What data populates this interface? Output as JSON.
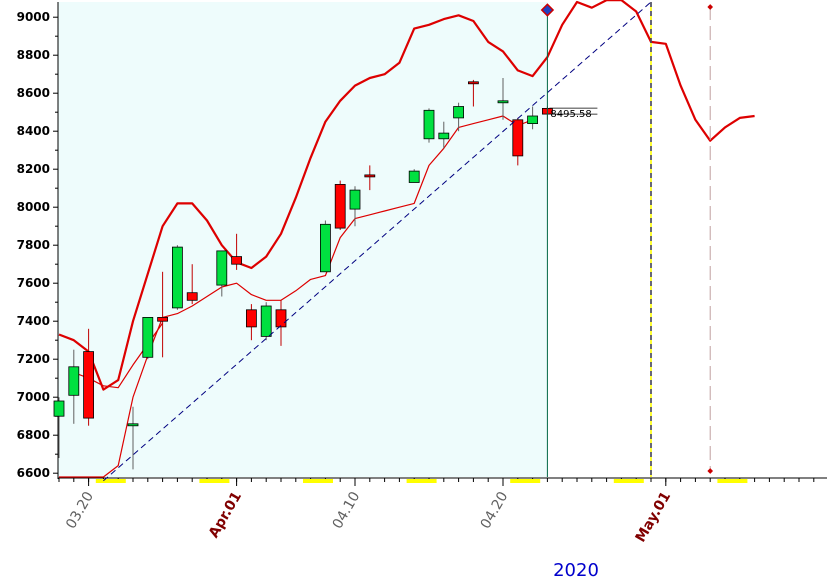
{
  "chart_data": {
    "type": "candlestick",
    "year_label": "2020",
    "ylim": [
      6580,
      9080
    ],
    "y_ticks": [
      6600,
      6800,
      7000,
      7200,
      7400,
      7600,
      7800,
      8000,
      8200,
      8400,
      8600,
      8800,
      9000
    ],
    "y_tick_labels": [
      "6600",
      "6800",
      "7000",
      "7200",
      "7400",
      "7600",
      "7800",
      "8000",
      "8200",
      "8400",
      "8600",
      "8800",
      "9000"
    ],
    "x_ticks": [
      {
        "label": "03.20",
        "index": 2,
        "color": "#606060",
        "bold": false
      },
      {
        "label": "Apr.01",
        "index": 12,
        "color": "#800000",
        "bold": true
      },
      {
        "label": "04.10",
        "index": 20,
        "color": "#606060",
        "bold": false
      },
      {
        "label": "04.20",
        "index": 30,
        "color": "#606060",
        "bold": false
      },
      {
        "label": "May.01",
        "index": 41,
        "color": "#800000",
        "bold": true
      }
    ],
    "colors": {
      "up": "#00e040",
      "down": "#ff0000",
      "band": "#dd0000",
      "background_history": "#eefcfc",
      "trendline": "#000080",
      "cursor": "#006644",
      "weekend_marker": "#ffff00",
      "year_label": "#0000cc"
    },
    "candles": [
      {
        "i": 0,
        "open": 6900,
        "high": 7000,
        "low": 6680,
        "close": 6980
      },
      {
        "i": 1,
        "open": 7010,
        "high": 7250,
        "low": 6860,
        "close": 7160
      },
      {
        "i": 2,
        "open": 7240,
        "high": 7360,
        "low": 6850,
        "close": 6890
      },
      {
        "i": 5,
        "open": 6860,
        "high": 6950,
        "low": 6620,
        "close": 6860
      },
      {
        "i": 6,
        "open": 7210,
        "high": 7420,
        "low": 7200,
        "close": 7420
      },
      {
        "i": 7,
        "open": 7420,
        "high": 7660,
        "low": 7210,
        "close": 7400
      },
      {
        "i": 8,
        "open": 7470,
        "high": 7800,
        "low": 7460,
        "close": 7790
      },
      {
        "i": 9,
        "open": 7550,
        "high": 7700,
        "low": 7490,
        "close": 7510
      },
      {
        "i": 11,
        "open": 7590,
        "high": 7770,
        "low": 7530,
        "close": 7770
      },
      {
        "i": 12,
        "open": 7740,
        "high": 7860,
        "low": 7670,
        "close": 7700
      },
      {
        "i": 13,
        "open": 7460,
        "high": 7490,
        "low": 7300,
        "close": 7370
      },
      {
        "i": 14,
        "open": 7320,
        "high": 7500,
        "low": 7300,
        "close": 7480
      },
      {
        "i": 15,
        "open": 7460,
        "high": 7510,
        "low": 7270,
        "close": 7370
      },
      {
        "i": 18,
        "open": 7660,
        "high": 7930,
        "low": 7660,
        "close": 7910
      },
      {
        "i": 19,
        "open": 8120,
        "high": 8140,
        "low": 7880,
        "close": 7890
      },
      {
        "i": 20,
        "open": 7990,
        "high": 8110,
        "low": 7900,
        "close": 8090
      },
      {
        "i": 21,
        "open": 8170,
        "high": 8220,
        "low": 8090,
        "close": 8160
      },
      {
        "i": 24,
        "open": 8130,
        "high": 8200,
        "low": 8130,
        "close": 8190
      },
      {
        "i": 25,
        "open": 8360,
        "high": 8520,
        "low": 8340,
        "close": 8510
      },
      {
        "i": 26,
        "open": 8360,
        "high": 8450,
        "low": 8310,
        "close": 8390
      },
      {
        "i": 27,
        "open": 8470,
        "high": 8550,
        "low": 8400,
        "close": 8530
      },
      {
        "i": 28,
        "open": 8660,
        "high": 8670,
        "low": 8530,
        "close": 8650
      },
      {
        "i": 30,
        "open": 8560,
        "high": 8680,
        "low": 8460,
        "close": 8560
      },
      {
        "i": 31,
        "open": 8460,
        "high": 8470,
        "low": 8220,
        "close": 8270
      },
      {
        "i": 32,
        "open": 8440,
        "high": 8530,
        "low": 8410,
        "close": 8480
      },
      {
        "i": 33,
        "open": 8520,
        "high": 8530,
        "low": 8460,
        "close": 8490
      }
    ],
    "upper_band": [
      [
        0,
        7330
      ],
      [
        1,
        7300
      ],
      [
        2,
        7240
      ],
      [
        3,
        7040
      ],
      [
        4,
        7090
      ],
      [
        5,
        7400
      ],
      [
        6,
        7650
      ],
      [
        7,
        7900
      ],
      [
        8,
        8020
      ],
      [
        9,
        8020
      ],
      [
        10,
        7930
      ],
      [
        11,
        7800
      ],
      [
        12,
        7710
      ],
      [
        13,
        7680
      ],
      [
        14,
        7740
      ],
      [
        15,
        7860
      ],
      [
        16,
        8050
      ],
      [
        17,
        8260
      ],
      [
        18,
        8450
      ],
      [
        19,
        8560
      ],
      [
        20,
        8640
      ],
      [
        21,
        8680
      ],
      [
        22,
        8700
      ],
      [
        23,
        8760
      ],
      [
        24,
        8940
      ],
      [
        25,
        8960
      ],
      [
        26,
        8990
      ],
      [
        27,
        9010
      ],
      [
        28,
        8980
      ],
      [
        29,
        8870
      ],
      [
        30,
        8820
      ],
      [
        31,
        8720
      ],
      [
        32,
        8690
      ],
      [
        33,
        8790
      ],
      [
        34,
        8960
      ],
      [
        35,
        9080
      ],
      [
        36,
        9050
      ],
      [
        37,
        9090
      ],
      [
        38,
        9090
      ],
      [
        39,
        9030
      ],
      [
        40,
        8870
      ],
      [
        41,
        8860
      ],
      [
        42,
        8640
      ],
      [
        43,
        8460
      ],
      [
        44,
        8350
      ],
      [
        45,
        8420
      ],
      [
        46,
        8470
      ],
      [
        47,
        8480
      ]
    ],
    "lower_band": [
      [
        0,
        6580
      ],
      [
        1,
        6580
      ],
      [
        2,
        6580
      ],
      [
        3,
        6580
      ],
      [
        4,
        6640
      ],
      [
        5,
        7000
      ],
      [
        6,
        7220
      ],
      [
        7,
        7420
      ],
      [
        8,
        7440
      ],
      [
        9,
        7480
      ],
      [
        10,
        7530
      ],
      [
        11,
        7580
      ],
      [
        12,
        7600
      ],
      [
        13,
        7540
      ],
      [
        14,
        7510
      ],
      [
        15,
        7510
      ],
      [
        16,
        7560
      ],
      [
        17,
        7620
      ],
      [
        18,
        7640
      ],
      [
        19,
        7840
      ],
      [
        20,
        7940
      ],
      [
        21,
        7960
      ],
      [
        22,
        7980
      ],
      [
        23,
        8000
      ],
      [
        24,
        8020
      ],
      [
        25,
        8220
      ],
      [
        26,
        8310
      ],
      [
        27,
        8420
      ],
      [
        28,
        8440
      ],
      [
        29,
        8460
      ],
      [
        30,
        8480
      ],
      [
        31,
        8430
      ],
      [
        32,
        8460
      ]
    ],
    "ma_line": [
      [
        1,
        7130
      ],
      [
        2,
        7100
      ],
      [
        3,
        7060
      ],
      [
        4,
        7050
      ],
      [
        5,
        7170
      ],
      [
        6,
        7280
      ],
      [
        7,
        7390
      ]
    ],
    "trendline": {
      "from": [
        3,
        6560
      ],
      "to": [
        40,
        9080
      ]
    },
    "cursor_index": 33,
    "forecast_index": 40,
    "end_index": 44,
    "price_readout": "8495.58",
    "weekend_indices": [
      3.5,
      10.5,
      17.5,
      24.5,
      31.5,
      38.5,
      45.5
    ]
  }
}
